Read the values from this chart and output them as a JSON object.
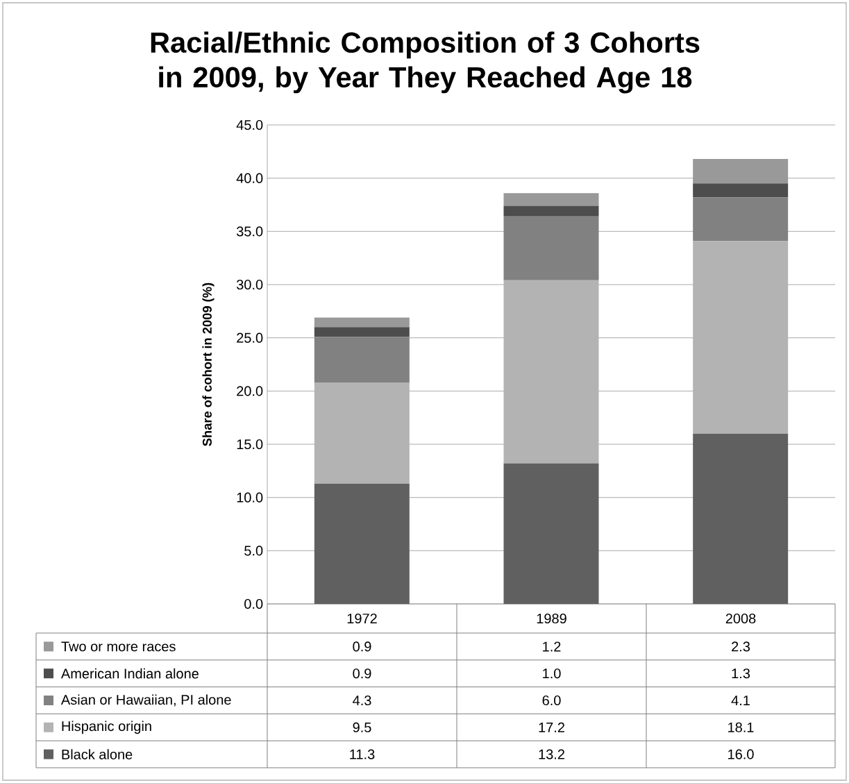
{
  "chart_data": {
    "type": "bar",
    "title": "Racial/Ethnic Composition of 3 Cohorts in 2009, by Year They Reached Age 18",
    "ylabel": "Share of cohort in 2009 (%)",
    "categories": [
      "1972",
      "1989",
      "2008"
    ],
    "stacked": true,
    "grid": "y",
    "legend": "bottom",
    "ylim": [
      0,
      45
    ],
    "yticks": [
      {
        "value": 0,
        "label": "0.0"
      },
      {
        "value": 5,
        "label": "5.0"
      },
      {
        "value": 10,
        "label": "10.0"
      },
      {
        "value": 15,
        "label": "15.0"
      },
      {
        "value": 20,
        "label": "20.0"
      },
      {
        "value": 25,
        "label": "25.0"
      },
      {
        "value": 30,
        "label": "30.0"
      },
      {
        "value": 35,
        "label": "35.0"
      },
      {
        "value": 40,
        "label": "40.0"
      },
      {
        "value": 45,
        "label": "45.0"
      }
    ],
    "series": [
      {
        "name": "Black alone",
        "color": "#606060",
        "values": [
          11.3,
          13.2,
          16.0
        ],
        "value_labels": [
          "11.3",
          "13.2",
          "16.0"
        ]
      },
      {
        "name": "Hispanic origin",
        "color": "#b3b3b3",
        "values": [
          9.5,
          17.2,
          18.1
        ],
        "value_labels": [
          "9.5",
          "17.2",
          "18.1"
        ]
      },
      {
        "name": "Asian or Hawaiian, PI alone",
        "color": "#818181",
        "values": [
          4.3,
          6.0,
          4.1
        ],
        "value_labels": [
          "4.3",
          "6.0",
          "4.1"
        ]
      },
      {
        "name": "American Indian alone",
        "color": "#4d4d4d",
        "values": [
          0.9,
          1.0,
          1.3
        ],
        "value_labels": [
          "0.9",
          "1.0",
          "1.3"
        ]
      },
      {
        "name": "Two or more races",
        "color": "#999999",
        "values": [
          0.9,
          1.2,
          2.3
        ],
        "value_labels": [
          "0.9",
          "1.2",
          "2.3"
        ]
      }
    ]
  }
}
